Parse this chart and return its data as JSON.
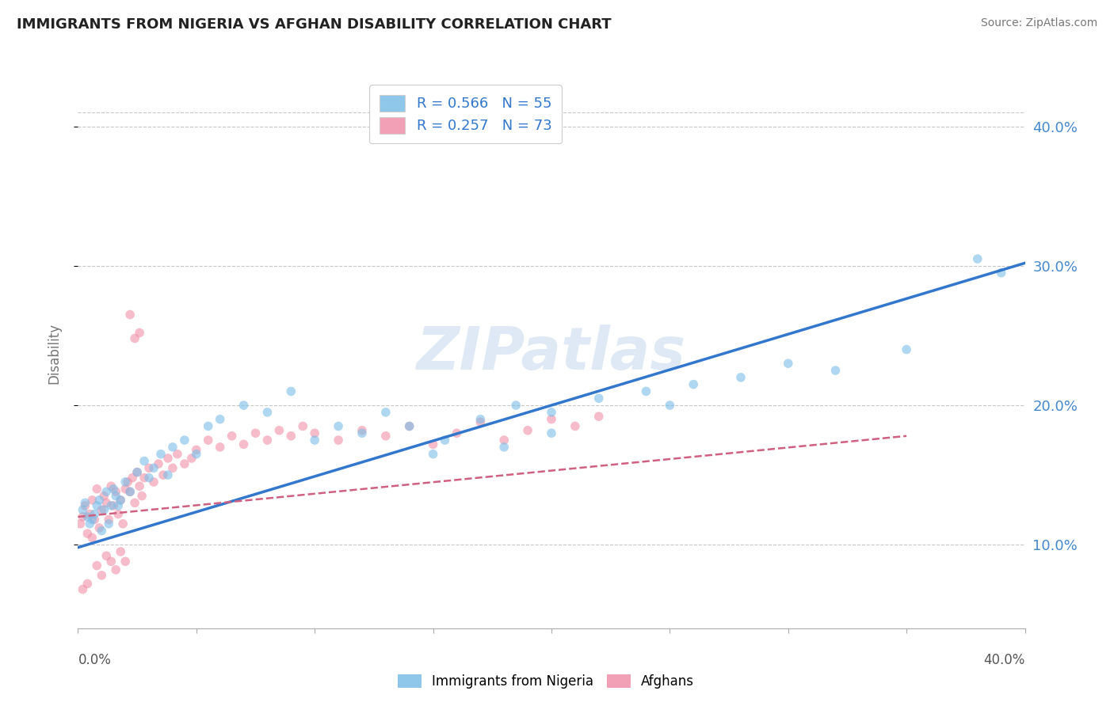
{
  "title": "IMMIGRANTS FROM NIGERIA VS AFGHAN DISABILITY CORRELATION CHART",
  "source": "Source: ZipAtlas.com",
  "ylabel": "Disability",
  "ytick_values": [
    0.1,
    0.2,
    0.3,
    0.4
  ],
  "xmin": 0.0,
  "xmax": 0.4,
  "ymin": 0.04,
  "ymax": 0.435,
  "legend_blue": "R = 0.566   N = 55",
  "legend_pink": "R = 0.257   N = 73",
  "blue_scatter_x": [
    0.002,
    0.003,
    0.004,
    0.005,
    0.006,
    0.007,
    0.008,
    0.009,
    0.01,
    0.011,
    0.012,
    0.013,
    0.014,
    0.015,
    0.016,
    0.017,
    0.018,
    0.02,
    0.022,
    0.025,
    0.028,
    0.03,
    0.032,
    0.035,
    0.038,
    0.04,
    0.045,
    0.05,
    0.055,
    0.06,
    0.07,
    0.08,
    0.09,
    0.1,
    0.11,
    0.12,
    0.13,
    0.14,
    0.155,
    0.17,
    0.185,
    0.2,
    0.22,
    0.24,
    0.26,
    0.28,
    0.3,
    0.32,
    0.35,
    0.38,
    0.25,
    0.2,
    0.18,
    0.15,
    0.39
  ],
  "blue_scatter_y": [
    0.125,
    0.13,
    0.12,
    0.115,
    0.118,
    0.122,
    0.128,
    0.132,
    0.11,
    0.125,
    0.138,
    0.115,
    0.128,
    0.14,
    0.135,
    0.128,
    0.132,
    0.145,
    0.138,
    0.152,
    0.16,
    0.148,
    0.155,
    0.165,
    0.15,
    0.17,
    0.175,
    0.165,
    0.185,
    0.19,
    0.2,
    0.195,
    0.21,
    0.175,
    0.185,
    0.18,
    0.195,
    0.185,
    0.175,
    0.19,
    0.2,
    0.195,
    0.205,
    0.21,
    0.215,
    0.22,
    0.23,
    0.225,
    0.24,
    0.305,
    0.2,
    0.18,
    0.17,
    0.165,
    0.295
  ],
  "pink_scatter_x": [
    0.001,
    0.002,
    0.003,
    0.004,
    0.005,
    0.006,
    0.007,
    0.008,
    0.009,
    0.01,
    0.011,
    0.012,
    0.013,
    0.014,
    0.015,
    0.016,
    0.017,
    0.018,
    0.019,
    0.02,
    0.021,
    0.022,
    0.023,
    0.024,
    0.025,
    0.026,
    0.027,
    0.028,
    0.03,
    0.032,
    0.034,
    0.036,
    0.038,
    0.04,
    0.042,
    0.045,
    0.048,
    0.05,
    0.055,
    0.06,
    0.065,
    0.07,
    0.075,
    0.08,
    0.085,
    0.09,
    0.095,
    0.1,
    0.11,
    0.12,
    0.13,
    0.14,
    0.15,
    0.16,
    0.17,
    0.18,
    0.19,
    0.2,
    0.21,
    0.22,
    0.002,
    0.004,
    0.006,
    0.008,
    0.01,
    0.012,
    0.014,
    0.016,
    0.018,
    0.02,
    0.022,
    0.024,
    0.026
  ],
  "pink_scatter_y": [
    0.115,
    0.12,
    0.128,
    0.108,
    0.122,
    0.132,
    0.118,
    0.14,
    0.112,
    0.125,
    0.135,
    0.13,
    0.118,
    0.142,
    0.128,
    0.138,
    0.122,
    0.132,
    0.115,
    0.14,
    0.145,
    0.138,
    0.148,
    0.13,
    0.152,
    0.142,
    0.135,
    0.148,
    0.155,
    0.145,
    0.158,
    0.15,
    0.162,
    0.155,
    0.165,
    0.158,
    0.162,
    0.168,
    0.175,
    0.17,
    0.178,
    0.172,
    0.18,
    0.175,
    0.182,
    0.178,
    0.185,
    0.18,
    0.175,
    0.182,
    0.178,
    0.185,
    0.172,
    0.18,
    0.188,
    0.175,
    0.182,
    0.19,
    0.185,
    0.192,
    0.068,
    0.072,
    0.105,
    0.085,
    0.078,
    0.092,
    0.088,
    0.082,
    0.095,
    0.088,
    0.265,
    0.248,
    0.252
  ],
  "blue_line_x": [
    0.0,
    0.4
  ],
  "blue_line_y": [
    0.098,
    0.302
  ],
  "pink_line_x": [
    0.0,
    0.35
  ],
  "pink_line_y": [
    0.12,
    0.178
  ],
  "watermark": "ZIPatlas",
  "scatter_alpha": 0.6,
  "scatter_size": 70,
  "title_color": "#222222",
  "source_color": "#777777",
  "blue_color": "#7bbde8",
  "pink_color": "#f090a8",
  "blue_line_color": "#3377cc",
  "pink_line_color": "#d06080",
  "grid_color": "#c8c8c8",
  "background_color": "#ffffff",
  "right_axis_color": "#4488cc"
}
